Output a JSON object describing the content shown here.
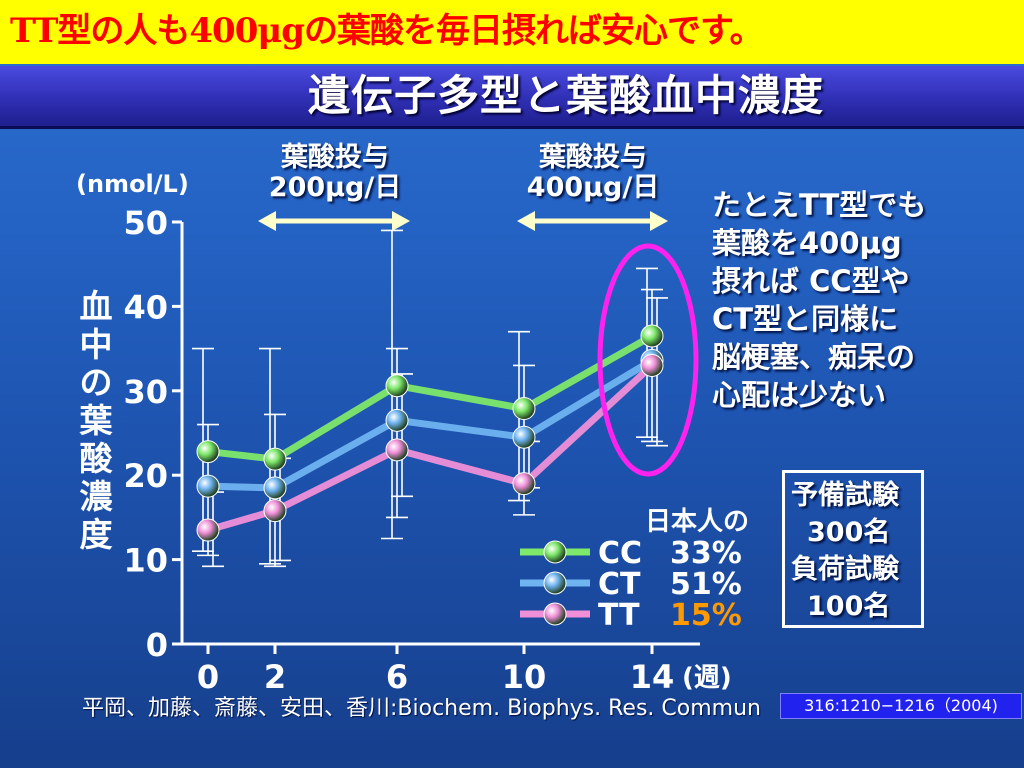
{
  "banner": {
    "text": "TT型の人も400μgの葉酸を毎日摂れば安心です。"
  },
  "slide_title": "遺伝子多型と葉酸血中濃度",
  "doses": [
    {
      "line1": "葉酸投与",
      "line2": "200μg/日"
    },
    {
      "line1": "葉酸投与",
      "line2": "400μg/日"
    }
  ],
  "annotation": [
    "たとえTT型でも",
    "葉酸を400μg",
    "摂れば CC型や",
    "CT型と同様に",
    "脳梗塞、痴呆の",
    "心配は少ない"
  ],
  "trial_box": {
    "prelim": "予備試験",
    "prelim_n": "300名",
    "load": "負荷試験",
    "load_n": "100名"
  },
  "citation": "平岡、加藤、斎藤、安田、香川:Biochem. Biophys. Res. Commun",
  "reference": "316:1210−1216（2004)",
  "colors": {
    "CC": "#7ee86a",
    "CT": "#6fb3f0",
    "TT": "#f08fd8",
    "highlight": "#ff22ee",
    "banner_text": "#ff0000"
  },
  "chart_data": {
    "type": "line",
    "yunit": "(nmol/L)",
    "ylabel": "血中の葉酸濃度",
    "xunit": "(週)",
    "x": [
      0,
      2,
      6,
      10,
      14
    ],
    "xticks": [
      "0",
      "2",
      "6",
      "10",
      "14"
    ],
    "yticks": [
      "0",
      "10",
      "20",
      "30",
      "40",
      "50"
    ],
    "ylim": [
      0,
      50
    ],
    "legend_title": "日本人の",
    "series": [
      {
        "name": "CC",
        "share": "33%",
        "values": [
          22.8,
          21.9,
          30.6,
          27.9,
          36.5
        ],
        "err_low": [
          11.0,
          9.5,
          12.5,
          17.0,
          24.5
        ],
        "err_high": [
          35.0,
          35.0,
          49.0,
          37.0,
          44.5
        ]
      },
      {
        "name": "CT",
        "share": "51%",
        "values": [
          18.7,
          18.5,
          26.5,
          24.5,
          33.6
        ],
        "err_low": [
          10.5,
          9.2,
          15.0,
          15.3,
          24.0
        ],
        "err_high": [
          26.0,
          27.2,
          35.0,
          33.0,
          42.0
        ]
      },
      {
        "name": "TT",
        "share": "15%",
        "values": [
          13.5,
          15.8,
          23.0,
          19.0,
          33.0
        ],
        "err_low": [
          9.2,
          9.9,
          17.5,
          18.5,
          23.5
        ],
        "err_high": [
          18.0,
          22.0,
          32.0,
          24.0,
          41.0
        ]
      }
    ]
  }
}
